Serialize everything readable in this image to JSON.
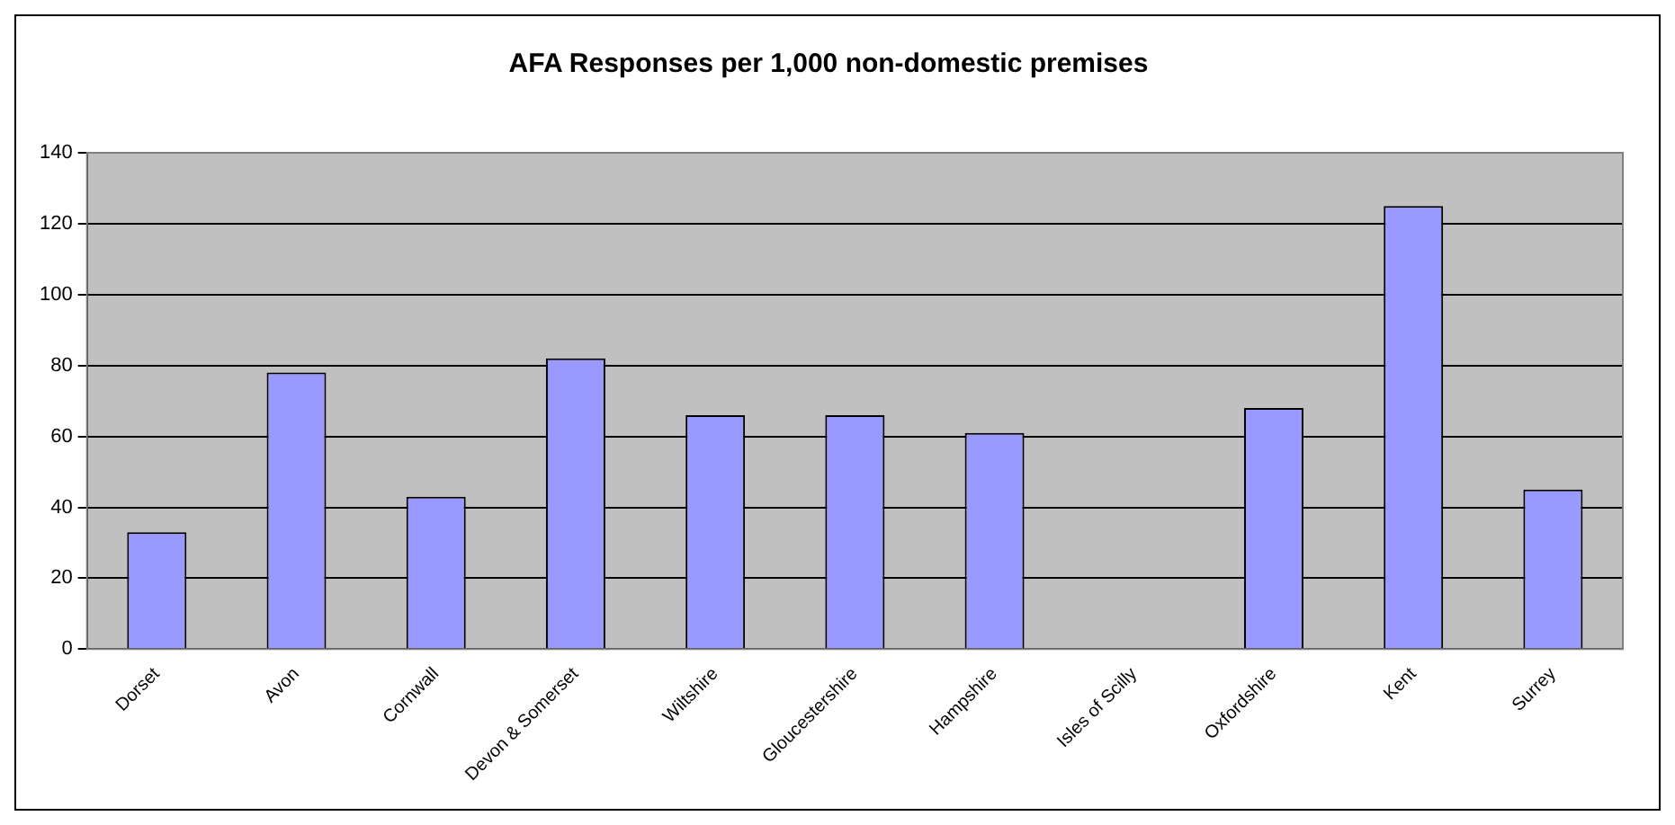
{
  "chart_data": {
    "type": "bar",
    "title": "AFA Responses per 1,000 non-domestic premises",
    "categories": [
      "Dorset",
      "Avon",
      "Cornwall",
      "Devon & Somerset",
      "Wiltshire",
      "Gloucestershire",
      "Hampshire",
      "Isles of Scilly",
      "Oxfordshire",
      "Kent",
      "Surrey"
    ],
    "values": [
      33,
      78,
      43,
      82,
      66,
      66,
      61,
      null,
      68,
      125,
      45
    ],
    "color": "#9999ff",
    "ylim": [
      0,
      140
    ],
    "yticks": [
      0,
      20,
      40,
      60,
      80,
      100,
      120,
      140
    ],
    "grid": "y",
    "legend": false
  }
}
